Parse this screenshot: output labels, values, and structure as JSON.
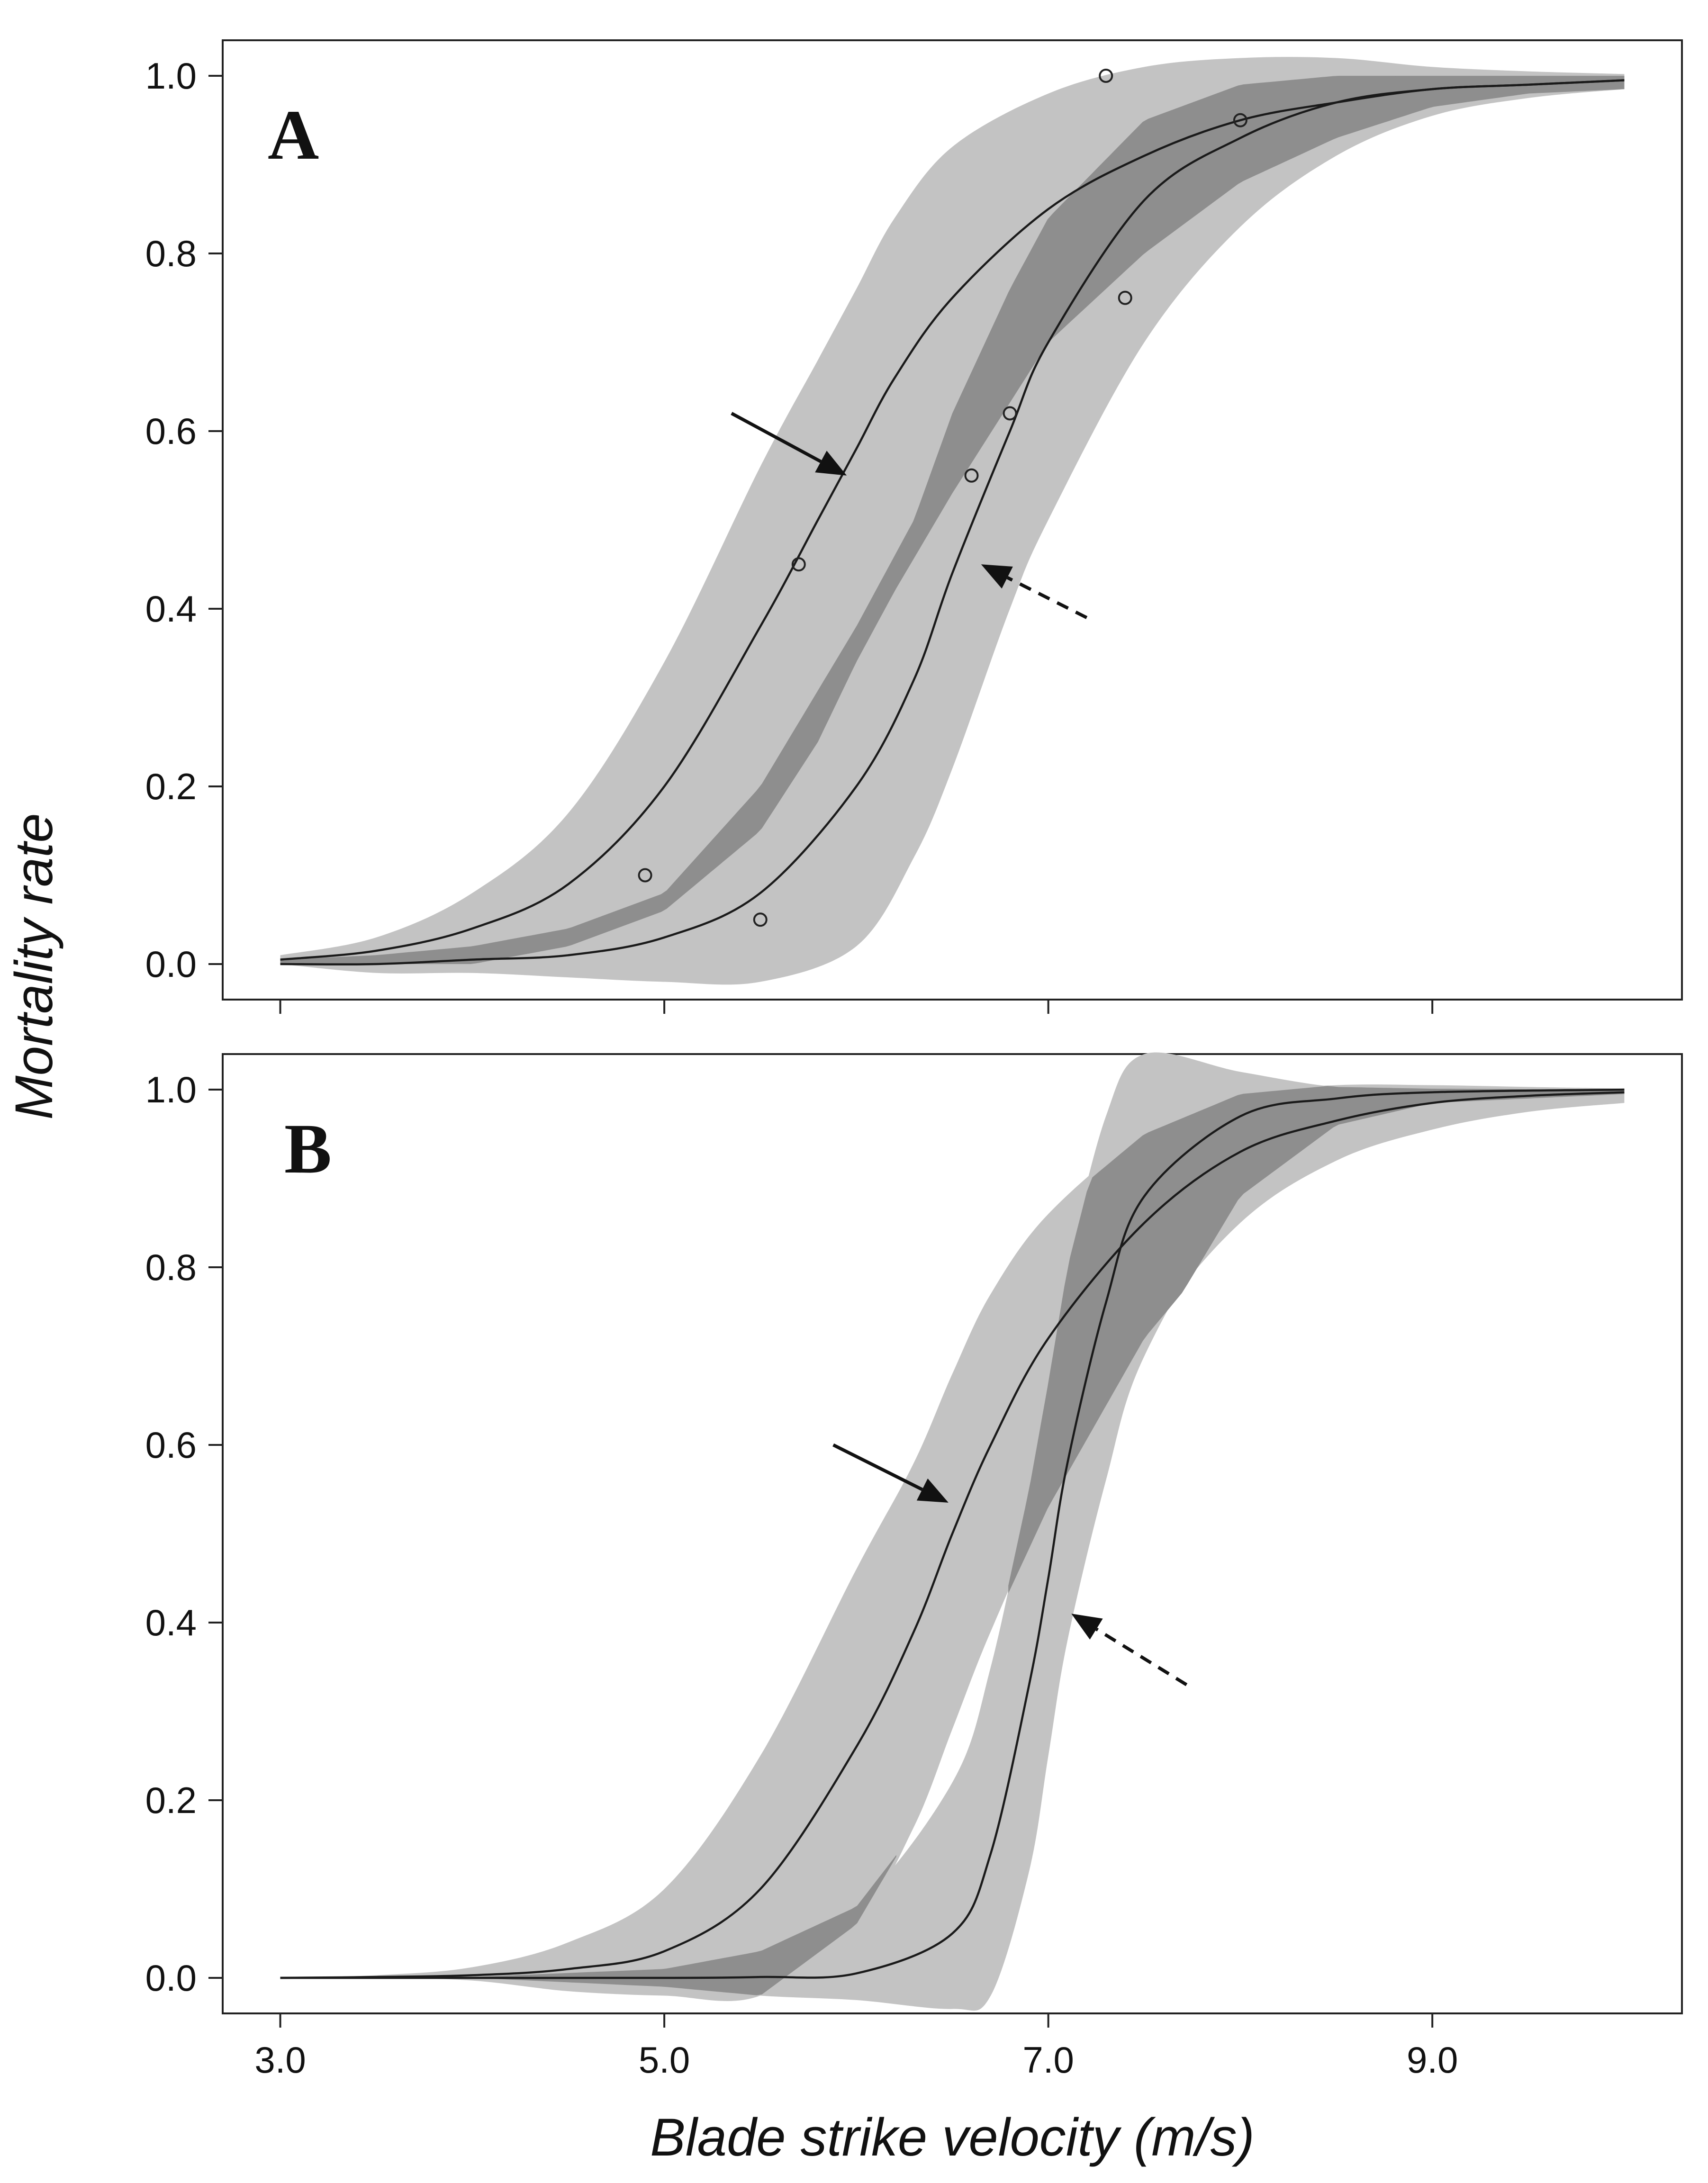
{
  "chart_data": {
    "type": "line",
    "xlabel": "Blade strike velocity (m/s)",
    "ylabel": "Mortality rate",
    "xlim": [
      2.7,
      10.3
    ],
    "ylim": [
      -0.04,
      1.04
    ],
    "xticks": [
      3.0,
      5.0,
      7.0,
      9.0
    ],
    "xtick_labels": [
      "3.0",
      "5.0",
      "7.0",
      "9.0"
    ],
    "yticks": [
      0.0,
      0.2,
      0.4,
      0.6,
      0.8,
      1.0
    ],
    "ytick_labels": [
      "0.0",
      "0.2",
      "0.4",
      "0.6",
      "0.8",
      "1.0"
    ],
    "colors": {
      "band": "#c3c3c3",
      "overlap": "#8e8e8e",
      "line": "#1a1a1a"
    },
    "panels": [
      {
        "label": "A",
        "ylim": [
          -0.04,
          1.04
        ],
        "series": [
          {
            "name": "solid-arrow curve",
            "x": [
              3.0,
              3.5,
              4.0,
              4.5,
              5.0,
              5.5,
              5.8,
              6.0,
              6.2,
              6.5,
              7.0,
              7.5,
              8.0,
              8.5,
              9.0,
              9.5,
              10.0
            ],
            "y": [
              0.005,
              0.015,
              0.04,
              0.09,
              0.2,
              0.38,
              0.5,
              0.58,
              0.66,
              0.75,
              0.85,
              0.91,
              0.95,
              0.97,
              0.985,
              0.99,
              0.995
            ],
            "lower": [
              0.0,
              0.0,
              0.0,
              0.02,
              0.06,
              0.15,
              0.25,
              0.34,
              0.42,
              0.53,
              0.7,
              0.8,
              0.88,
              0.93,
              0.965,
              0.98,
              0.985
            ],
            "upper": [
              0.01,
              0.03,
              0.08,
              0.17,
              0.34,
              0.56,
              0.68,
              0.76,
              0.84,
              0.92,
              0.98,
              1.01,
              1.02,
              1.02,
              1.01,
              1.005,
              1.002
            ]
          },
          {
            "name": "dashed-arrow curve",
            "x": [
              3.0,
              3.5,
              4.0,
              4.5,
              5.0,
              5.5,
              6.0,
              6.3,
              6.5,
              6.8,
              7.0,
              7.5,
              8.0,
              8.5,
              9.0,
              9.5,
              10.0
            ],
            "y": [
              0.0,
              0.0,
              0.005,
              0.01,
              0.03,
              0.08,
              0.2,
              0.32,
              0.44,
              0.6,
              0.7,
              0.86,
              0.93,
              0.97,
              0.985,
              0.99,
              0.995
            ],
            "lower": [
              0.0,
              -0.01,
              -0.01,
              -0.015,
              -0.02,
              -0.02,
              0.02,
              0.12,
              0.22,
              0.4,
              0.5,
              0.7,
              0.83,
              0.91,
              0.955,
              0.975,
              0.985
            ],
            "upper": [
              0.005,
              0.01,
              0.02,
              0.04,
              0.08,
              0.2,
              0.38,
              0.5,
              0.62,
              0.76,
              0.84,
              0.95,
              0.99,
              1.0,
              1.0,
              1.0,
              1.0
            ]
          }
        ],
        "points": {
          "x": [
            4.9,
            5.5,
            5.7,
            6.6,
            6.8,
            7.3,
            7.4,
            8.0
          ],
          "y": [
            0.1,
            0.05,
            0.45,
            0.55,
            0.62,
            1.0,
            0.75,
            0.95
          ]
        },
        "arrows": [
          {
            "style": "solid",
            "from": [
              5.35,
              0.62
            ],
            "to": [
              5.95,
              0.55
            ]
          },
          {
            "style": "dashed",
            "from": [
              7.2,
              0.39
            ],
            "to": [
              6.65,
              0.45
            ]
          }
        ]
      },
      {
        "label": "B",
        "ylim": [
          -0.04,
          1.04
        ],
        "series": [
          {
            "name": "solid-arrow curve",
            "x": [
              3.0,
              3.5,
              4.0,
              4.5,
              5.0,
              5.5,
              6.0,
              6.3,
              6.5,
              6.7,
              7.0,
              7.5,
              8.0,
              8.5,
              9.0,
              9.5,
              10.0
            ],
            "y": [
              0.0,
              0.001,
              0.003,
              0.01,
              0.03,
              0.1,
              0.26,
              0.39,
              0.5,
              0.6,
              0.72,
              0.85,
              0.93,
              0.965,
              0.985,
              0.993,
              0.997
            ],
            "lower": [
              0.0,
              0.0,
              -0.003,
              -0.015,
              -0.02,
              -0.02,
              0.06,
              0.17,
              0.28,
              0.39,
              0.53,
              0.72,
              0.85,
              0.92,
              0.955,
              0.975,
              0.985
            ],
            "upper": [
              0.0,
              0.003,
              0.012,
              0.04,
              0.1,
              0.25,
              0.46,
              0.58,
              0.68,
              0.77,
              0.86,
              0.95,
              0.995,
              1.005,
              1.005,
              1.003,
              1.001
            ]
          },
          {
            "name": "dashed-arrow curve",
            "x": [
              3.0,
              4.0,
              5.0,
              5.5,
              6.0,
              6.5,
              6.7,
              6.9,
              7.0,
              7.1,
              7.3,
              7.5,
              8.0,
              8.5,
              9.0,
              10.0
            ],
            "y": [
              0.0,
              0.0,
              0.0,
              0.001,
              0.005,
              0.05,
              0.14,
              0.33,
              0.45,
              0.58,
              0.76,
              0.88,
              0.97,
              0.99,
              0.997,
              1.0
            ],
            "lower": [
              0.0,
              0.0,
              -0.01,
              -0.02,
              -0.025,
              -0.035,
              -0.02,
              0.12,
              0.25,
              0.38,
              0.56,
              0.7,
              0.88,
              0.96,
              0.985,
              0.995
            ],
            "upper": [
              0.0,
              0.001,
              0.01,
              0.03,
              0.08,
              0.22,
              0.35,
              0.55,
              0.67,
              0.8,
              0.97,
              1.04,
              1.02,
              1.003,
              1.001,
              1.0
            ]
          }
        ],
        "points": {
          "x": [],
          "y": []
        },
        "arrows": [
          {
            "style": "solid",
            "from": [
              5.88,
              0.6
            ],
            "to": [
              6.48,
              0.535
            ]
          },
          {
            "style": "dashed",
            "from": [
              7.72,
              0.33
            ],
            "to": [
              7.12,
              0.41
            ]
          }
        ]
      }
    ]
  }
}
